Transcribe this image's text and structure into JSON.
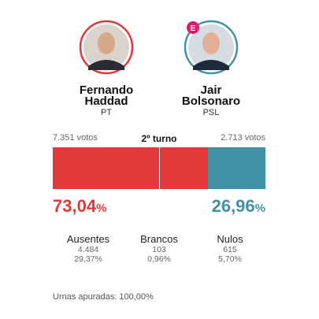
{
  "round": "2º turno",
  "candidates": [
    {
      "first_name": "Fernando",
      "last_name": "Haddad",
      "party": "PT",
      "votes": "7.351 votos",
      "color": "#e0393a",
      "percent": {
        "value": 73.04,
        "label": "73,04%"
      }
    },
    {
      "first_name": "Jair",
      "last_name": "Bolsonaro",
      "party": "PSL",
      "votes": "2.713 votos",
      "color": "#3f92a6",
      "percent": {
        "value": 26.96,
        "label": "26,96%"
      },
      "badge": "E"
    }
  ],
  "stats": [
    {
      "label": "Ausentes",
      "count": "4.484",
      "percent": "29,37%"
    },
    {
      "label": "Brancos",
      "count": "103",
      "percent": "0,96%"
    },
    {
      "label": "Nulos",
      "count": "615",
      "percent": "5,70%"
    }
  ],
  "footer": "Urnas apuradas: 100,00%"
}
